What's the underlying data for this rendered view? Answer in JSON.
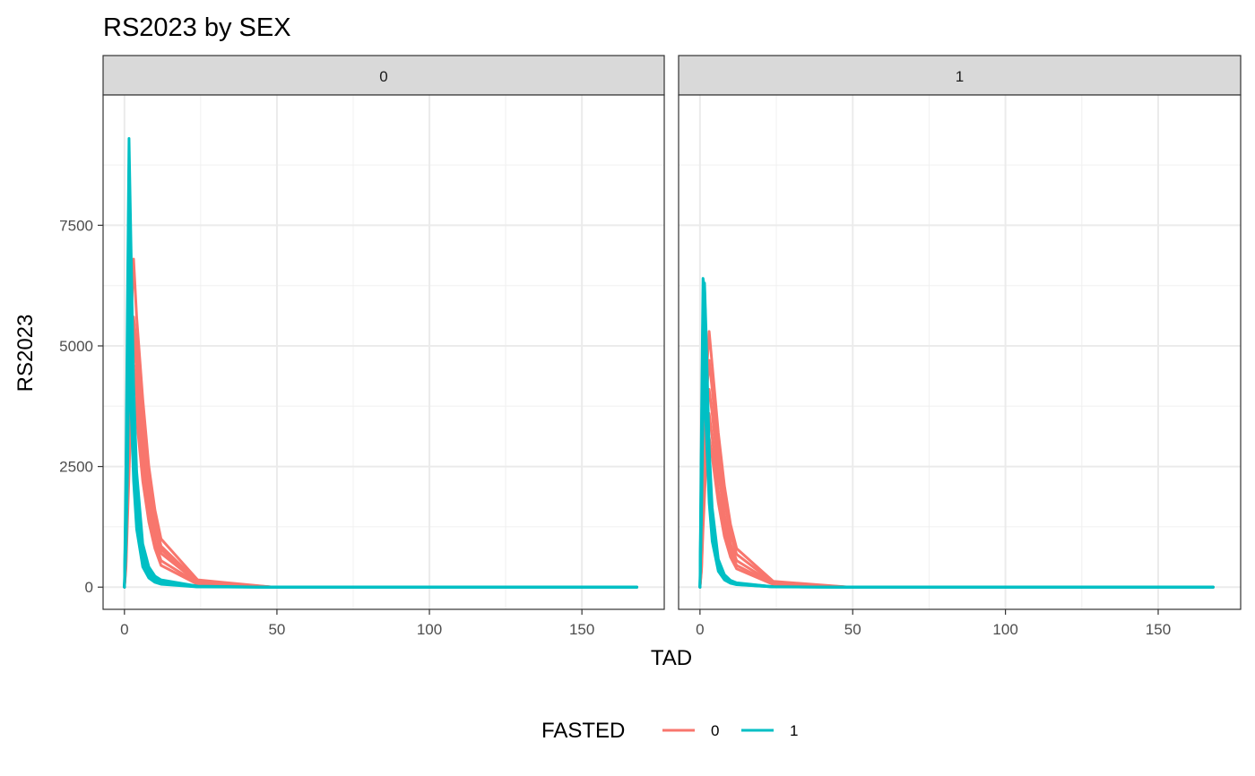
{
  "chart_data": {
    "type": "line",
    "title": "RS2023 by SEX",
    "xlabel": "TAD",
    "ylabel": "RS2023",
    "xlim": [
      -7,
      177
    ],
    "ylim": [
      -460,
      10200
    ],
    "x_major_ticks": [
      0,
      50,
      100,
      150
    ],
    "x_minor_ticks": [
      25,
      75,
      125
    ],
    "y_major_ticks": [
      0,
      2500,
      5000,
      7500
    ],
    "y_minor_ticks": [
      1250,
      3750,
      6250,
      8750
    ],
    "x_tick_labels": [
      "0",
      "50",
      "100",
      "150"
    ],
    "y_tick_labels": [
      "0",
      "2500",
      "5000",
      "7500"
    ],
    "grid": true,
    "legend": {
      "title": "FASTED",
      "position": "bottom",
      "entries": [
        {
          "label": "0",
          "color": "#F8766D"
        },
        {
          "label": "1",
          "color": "#00BFC4"
        }
      ]
    },
    "facet_variable": "SEX",
    "facets": [
      {
        "label": "0",
        "series": [
          {
            "group": "0",
            "color": "#F8766D",
            "x": [
              0,
              0.5,
              1,
              2,
              3,
              4,
              6,
              8,
              10,
              12,
              24,
              48,
              72,
              96,
              120,
              168
            ],
            "y": [
              0,
              900,
              2800,
              5200,
              6800,
              5600,
              3900,
              2500,
              1600,
              1000,
              150,
              5,
              0,
              0,
              0,
              0
            ]
          },
          {
            "group": "0",
            "color": "#F8766D",
            "x": [
              0,
              0.5,
              1,
              2,
              3,
              4,
              6,
              8,
              10,
              12,
              24,
              48,
              72,
              96,
              120,
              168
            ],
            "y": [
              0,
              700,
              2300,
              4700,
              5600,
              5000,
              3400,
              2200,
              1400,
              850,
              120,
              4,
              0,
              0,
              0,
              0
            ]
          },
          {
            "group": "0",
            "color": "#F8766D",
            "x": [
              0,
              0.5,
              1,
              2,
              3,
              4,
              6,
              8,
              10,
              12,
              24,
              48,
              72,
              96,
              120,
              168
            ],
            "y": [
              0,
              600,
              2000,
              4200,
              5100,
              4500,
              3000,
              1900,
              1150,
              700,
              100,
              3,
              0,
              0,
              0,
              0
            ]
          },
          {
            "group": "0",
            "color": "#F8766D",
            "x": [
              0,
              0.5,
              1,
              2,
              3,
              4,
              6,
              8,
              10,
              12,
              24,
              48,
              72,
              96,
              120,
              168
            ],
            "y": [
              0,
              500,
              1700,
              3800,
              4600,
              4000,
              2600,
              1600,
              950,
              550,
              80,
              2,
              0,
              0,
              0,
              0
            ]
          },
          {
            "group": "0",
            "color": "#F8766D",
            "x": [
              0,
              0.5,
              1,
              2,
              3,
              4,
              6,
              8,
              10,
              12,
              24,
              48,
              72,
              96,
              120,
              168
            ],
            "y": [
              0,
              400,
              1400,
              3300,
              4100,
              3500,
              2200,
              1350,
              800,
              450,
              60,
              2,
              0,
              0,
              0,
              0
            ]
          },
          {
            "group": "0",
            "color": "#F8766D",
            "x": [
              0,
              0.5,
              1,
              2,
              3,
              4,
              6,
              8,
              10,
              12,
              24,
              48,
              72,
              96,
              120,
              168
            ],
            "y": [
              0,
              650,
              2100,
              4500,
              5400,
              4700,
              3200,
              2000,
              1250,
              780,
              110,
              3,
              0,
              0,
              0,
              0
            ]
          },
          {
            "group": "1",
            "color": "#00BFC4",
            "x": [
              0,
              0.5,
              1,
              1.5,
              2,
              3,
              4,
              6,
              8,
              10,
              12,
              24,
              48,
              72,
              96,
              120,
              168
            ],
            "y": [
              0,
              2500,
              6000,
              9300,
              7600,
              4200,
              2400,
              900,
              420,
              230,
              150,
              20,
              0,
              0,
              0,
              0,
              0
            ]
          },
          {
            "group": "1",
            "color": "#00BFC4",
            "x": [
              0,
              0.5,
              1,
              1.5,
              2,
              3,
              4,
              6,
              8,
              10,
              12,
              24,
              48,
              72,
              96,
              120,
              168
            ],
            "y": [
              0,
              2000,
              5200,
              8700,
              7000,
              3900,
              2200,
              800,
              370,
              200,
              130,
              15,
              0,
              0,
              0,
              0,
              0
            ]
          },
          {
            "group": "1",
            "color": "#00BFC4",
            "x": [
              0,
              0.5,
              1,
              1.5,
              2,
              3,
              4,
              6,
              8,
              10,
              12,
              24,
              48,
              72,
              96,
              120,
              168
            ],
            "y": [
              0,
              1800,
              4700,
              7400,
              6200,
              3500,
              2000,
              720,
              330,
              180,
              110,
              12,
              0,
              0,
              0,
              0,
              0
            ]
          },
          {
            "group": "1",
            "color": "#00BFC4",
            "x": [
              0,
              0.5,
              1,
              1.5,
              2,
              3,
              4,
              6,
              8,
              10,
              12,
              24,
              48,
              72,
              96,
              120,
              168
            ],
            "y": [
              0,
              1500,
              4000,
              6800,
              5900,
              3300,
              1850,
              650,
              300,
              160,
              100,
              10,
              0,
              0,
              0,
              0,
              0
            ]
          },
          {
            "group": "1",
            "color": "#00BFC4",
            "x": [
              0,
              0.5,
              1,
              1.5,
              2,
              3,
              4,
              6,
              8,
              10,
              12,
              24,
              48,
              72,
              96,
              120,
              168
            ],
            "y": [
              0,
              1200,
              3300,
              6000,
              5200,
              2900,
              1650,
              580,
              260,
              140,
              90,
              8,
              0,
              0,
              0,
              0,
              0
            ]
          },
          {
            "group": "1",
            "color": "#00BFC4",
            "x": [
              0,
              0.5,
              1,
              1.5,
              2,
              3,
              4,
              6,
              8,
              10,
              12,
              24,
              48,
              72,
              96,
              120,
              168
            ],
            "y": [
              0,
              1000,
              2800,
              5300,
              4600,
              2500,
              1400,
              480,
              220,
              120,
              75,
              6,
              0,
              0,
              0,
              0,
              0
            ]
          },
          {
            "group": "1",
            "color": "#00BFC4",
            "x": [
              0,
              0.5,
              1,
              1.5,
              2,
              3,
              4,
              6,
              8,
              10,
              12,
              24,
              48,
              72,
              96,
              120,
              168
            ],
            "y": [
              0,
              800,
              2300,
              4500,
              4000,
              2200,
              1200,
              420,
              190,
              100,
              60,
              5,
              0,
              0,
              0,
              0,
              0
            ]
          }
        ]
      },
      {
        "label": "1",
        "series": [
          {
            "group": "0",
            "color": "#F8766D",
            "x": [
              0,
              0.5,
              1,
              2,
              3,
              4,
              6,
              8,
              10,
              12,
              24,
              48,
              72,
              96,
              120,
              168
            ],
            "y": [
              0,
              700,
              2300,
              4300,
              5300,
              4600,
              3200,
              2100,
              1300,
              800,
              120,
              4,
              0,
              0,
              0,
              0
            ]
          },
          {
            "group": "0",
            "color": "#F8766D",
            "x": [
              0,
              0.5,
              1,
              2,
              3,
              4,
              6,
              8,
              10,
              12,
              24,
              48,
              72,
              96,
              120,
              168
            ],
            "y": [
              0,
              600,
              2000,
              3900,
              4700,
              4100,
              2800,
              1800,
              1100,
              680,
              100,
              3,
              0,
              0,
              0,
              0
            ]
          },
          {
            "group": "0",
            "color": "#F8766D",
            "x": [
              0,
              0.5,
              1,
              2,
              3,
              4,
              6,
              8,
              10,
              12,
              24,
              48,
              72,
              96,
              120,
              168
            ],
            "y": [
              0,
              500,
              1700,
              3500,
              4100,
              3600,
              2400,
              1500,
              900,
              550,
              80,
              2,
              0,
              0,
              0,
              0
            ]
          },
          {
            "group": "0",
            "color": "#F8766D",
            "x": [
              0,
              0.5,
              1,
              2,
              3,
              4,
              6,
              8,
              10,
              12,
              24,
              48,
              72,
              96,
              120,
              168
            ],
            "y": [
              0,
              400,
              1400,
              3000,
              3600,
              3100,
              2000,
              1250,
              750,
              450,
              65,
              2,
              0,
              0,
              0,
              0
            ]
          },
          {
            "group": "0",
            "color": "#F8766D",
            "x": [
              0,
              0.5,
              1,
              2,
              3,
              4,
              6,
              8,
              10,
              12,
              24,
              48,
              72,
              96,
              120,
              168
            ],
            "y": [
              0,
              350,
              1200,
              2600,
              3100,
              2700,
              1750,
              1050,
              620,
              380,
              55,
              1,
              0,
              0,
              0,
              0
            ]
          },
          {
            "group": "1",
            "color": "#00BFC4",
            "x": [
              0,
              0.5,
              1,
              1.5,
              2,
              3,
              4,
              6,
              8,
              10,
              12,
              24,
              48,
              72,
              96,
              120,
              168
            ],
            "y": [
              0,
              3500,
              6400,
              6200,
              5000,
              2700,
              1500,
              520,
              240,
              130,
              80,
              8,
              0,
              0,
              0,
              0,
              0
            ]
          },
          {
            "group": "1",
            "color": "#00BFC4",
            "x": [
              0,
              0.5,
              1,
              1.5,
              2,
              3,
              4,
              6,
              8,
              10,
              12,
              24,
              48,
              72,
              96,
              120,
              168
            ],
            "y": [
              0,
              3000,
              5900,
              6300,
              5300,
              2900,
              1650,
              580,
              260,
              140,
              90,
              9,
              0,
              0,
              0,
              0,
              0
            ]
          },
          {
            "group": "1",
            "color": "#00BFC4",
            "x": [
              0,
              0.5,
              1,
              1.5,
              2,
              3,
              4,
              6,
              8,
              10,
              12,
              24,
              48,
              72,
              96,
              120,
              168
            ],
            "y": [
              0,
              2600,
              5400,
              5900,
              4800,
              2600,
              1450,
              500,
              230,
              120,
              75,
              7,
              0,
              0,
              0,
              0,
              0
            ]
          },
          {
            "group": "1",
            "color": "#00BFC4",
            "x": [
              0,
              0.5,
              1,
              1.5,
              2,
              3,
              4,
              6,
              8,
              10,
              12,
              24,
              48,
              72,
              96,
              120,
              168
            ],
            "y": [
              0,
              2200,
              4800,
              5400,
              4300,
              2300,
              1300,
              450,
              200,
              110,
              65,
              6,
              0,
              0,
              0,
              0,
              0
            ]
          },
          {
            "group": "1",
            "color": "#00BFC4",
            "x": [
              0,
              0.5,
              1,
              1.5,
              2,
              3,
              4,
              6,
              8,
              10,
              12,
              24,
              48,
              72,
              96,
              120,
              168
            ],
            "y": [
              0,
              1800,
              4100,
              4700,
              3800,
              2000,
              1100,
              380,
              170,
              90,
              55,
              5,
              0,
              0,
              0,
              0,
              0
            ]
          },
          {
            "group": "1",
            "color": "#00BFC4",
            "x": [
              0,
              0.5,
              1,
              1.5,
              2,
              3,
              4,
              6,
              8,
              10,
              12,
              24,
              48,
              72,
              96,
              120,
              168
            ],
            "y": [
              0,
              1500,
              3500,
              4100,
              3300,
              1750,
              950,
              330,
              150,
              80,
              50,
              4,
              0,
              0,
              0,
              0,
              0
            ]
          }
        ]
      }
    ]
  }
}
